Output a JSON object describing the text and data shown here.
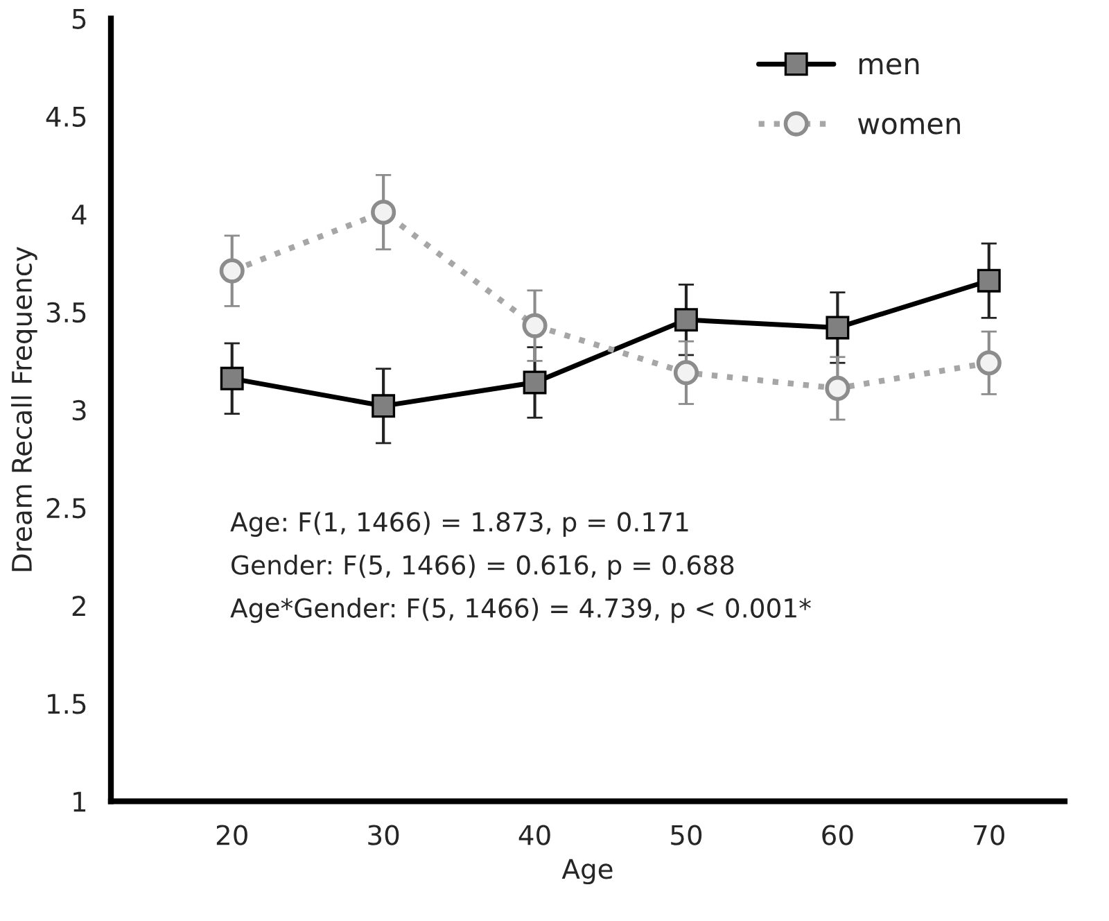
{
  "chart_data": {
    "type": "line",
    "xlabel": "Age",
    "ylabel": "Dream Recall Frequency",
    "categories": [
      "20",
      "30",
      "40",
      "50",
      "60",
      "70"
    ],
    "series": [
      {
        "name": "men",
        "color": "#000000",
        "marker": "square",
        "line_style": "solid",
        "values": [
          3.16,
          3.02,
          3.14,
          3.46,
          3.42,
          3.66
        ],
        "errors": [
          0.18,
          0.19,
          0.18,
          0.18,
          0.18,
          0.19
        ]
      },
      {
        "name": "women",
        "color": "#a6a6a6",
        "marker": "circle",
        "line_style": "dotted",
        "values": [
          3.71,
          4.01,
          3.43,
          3.19,
          3.11,
          3.24
        ],
        "errors": [
          0.18,
          0.19,
          0.18,
          0.16,
          0.16,
          0.16
        ]
      }
    ],
    "ylim": [
      1,
      5
    ],
    "yticks": [
      1,
      1.5,
      2,
      2.5,
      3,
      3.5,
      4,
      4.5,
      5
    ],
    "grid": false,
    "legend": "top right",
    "annotations": [
      "Age: F(1, 1466) = 1.873, p = 0.171",
      "Gender: F(5, 1466) = 0.616, p = 0.688",
      "Age*Gender: F(5, 1466) = 4.739, p < 0.001*"
    ]
  }
}
